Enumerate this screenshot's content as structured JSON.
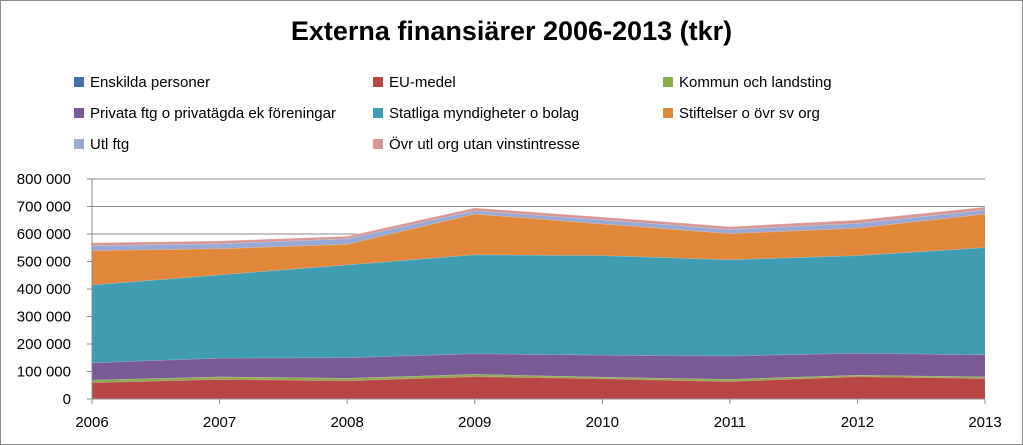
{
  "chart_data": {
    "type": "area",
    "stacked": true,
    "title": "Externa finansiärer 2006-2013 (tkr)",
    "xlabel": "",
    "ylabel": "",
    "categories": [
      "2006",
      "2007",
      "2008",
      "2009",
      "2010",
      "2011",
      "2012",
      "2013"
    ],
    "ylim": [
      0,
      800000
    ],
    "y_ticks": [
      0,
      100000,
      200000,
      300000,
      400000,
      500000,
      600000,
      700000,
      800000
    ],
    "y_tick_labels": [
      "0",
      "100 000",
      "200 000",
      "300 000",
      "400 000",
      "500 000",
      "600 000",
      "700 000",
      "800 000"
    ],
    "grid": true,
    "legend_position": "top",
    "series": [
      {
        "name": "Enskilda personer",
        "color": "#4472a8",
        "values": [
          2000,
          2000,
          2000,
          2000,
          2000,
          2000,
          2000,
          2000
        ]
      },
      {
        "name": "EU-medel",
        "color": "#b84744",
        "values": [
          58000,
          70000,
          65000,
          80000,
          72000,
          62000,
          80000,
          73000
        ]
      },
      {
        "name": "Kommun och landsting",
        "color": "#8bac4a",
        "values": [
          9000,
          9000,
          9000,
          8000,
          6000,
          8000,
          5000,
          6000
        ]
      },
      {
        "name": "Privata ftg o privatägda ek föreningar",
        "color": "#7a5a96",
        "values": [
          63000,
          68000,
          75000,
          75000,
          80000,
          85000,
          80000,
          80000
        ]
      },
      {
        "name": "Statliga myndigheter o bolag",
        "color": "#3f9cb3",
        "values": [
          283000,
          303000,
          337000,
          360000,
          362000,
          350000,
          355000,
          390000
        ]
      },
      {
        "name": "Stiftelser o övr sv org",
        "color": "#e0873a",
        "values": [
          125000,
          95000,
          75000,
          148000,
          115000,
          95000,
          100000,
          122000
        ]
      },
      {
        "name": "Utl ftg",
        "color": "#97a9d4",
        "values": [
          18000,
          18000,
          20000,
          12000,
          15000,
          15000,
          17000,
          15000
        ]
      },
      {
        "name": "Övr utl org utan vinstintresse",
        "color": "#d99593",
        "values": [
          10000,
          10000,
          9000,
          10000,
          10000,
          10000,
          12000,
          10000
        ]
      }
    ]
  }
}
